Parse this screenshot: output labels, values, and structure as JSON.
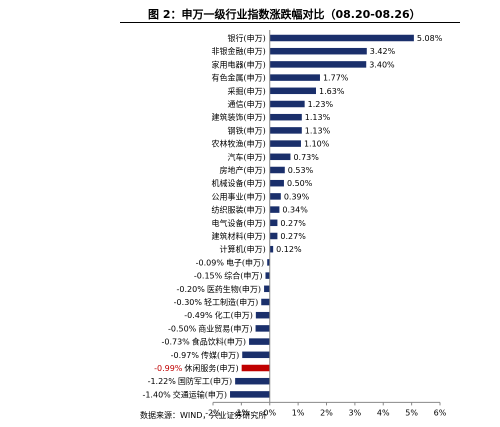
{
  "figure": {
    "title": "图 2：申万一级行业指数涨跌幅对比（08.20-08.26）",
    "source": "数据来源：WIND，兴业证券研究所"
  },
  "colors": {
    "bar": "#1a2f6b",
    "highlight": "#c00000",
    "axis": "#888888"
  },
  "chart_data": {
    "type": "bar",
    "orientation": "horizontal",
    "title": "图 2：申万一级行业指数涨跌幅对比（08.20-08.26）",
    "xlabel": "",
    "ylabel": "",
    "xlim": [
      -2,
      6
    ],
    "x_ticks": [
      "-2%",
      "-1%",
      "0%",
      "1%",
      "2%",
      "3%",
      "4%",
      "5%",
      "6%"
    ],
    "categories": [
      "银行(申万)",
      "非银金融(申万)",
      "家用电器(申万)",
      "有色金属(申万)",
      "采掘(申万)",
      "通信(申万)",
      "建筑装饰(申万)",
      "钢铁(申万)",
      "农林牧渔(申万)",
      "汽车(申万)",
      "房地产(申万)",
      "机械设备(申万)",
      "公用事业(申万)",
      "纺织服装(申万)",
      "电气设备(申万)",
      "建筑材料(申万)",
      "计算机(申万)",
      "电子(申万)",
      "综合(申万)",
      "医药生物(申万)",
      "轻工制造(申万)",
      "化工(申万)",
      "商业贸易(申万)",
      "食品饮料(申万)",
      "传媒(申万)",
      "休闲服务(申万)",
      "国防军工(申万)",
      "交通运输(申万)"
    ],
    "values": [
      5.08,
      3.42,
      3.4,
      1.77,
      1.63,
      1.23,
      1.13,
      1.13,
      1.1,
      0.73,
      0.53,
      0.5,
      0.39,
      0.34,
      0.27,
      0.27,
      0.12,
      -0.09,
      -0.15,
      -0.2,
      -0.3,
      -0.49,
      -0.5,
      -0.73,
      -0.97,
      -0.99,
      -1.22,
      -1.4
    ],
    "data_labels": [
      "5.08%",
      "3.42%",
      "3.40%",
      "1.77%",
      "1.63%",
      "1.23%",
      "1.13%",
      "1.13%",
      "1.10%",
      "0.73%",
      "0.53%",
      "0.50%",
      "0.39%",
      "0.34%",
      "0.27%",
      "0.27%",
      "0.12%",
      "-0.09%",
      "-0.15%",
      "-0.20%",
      "-0.30%",
      "-0.49%",
      "-0.50%",
      "-0.73%",
      "-0.97%",
      "-0.99%",
      "-1.22%",
      "-1.40%"
    ],
    "highlight_category": "休闲服务(申万)",
    "grid": false,
    "legend": "none"
  }
}
